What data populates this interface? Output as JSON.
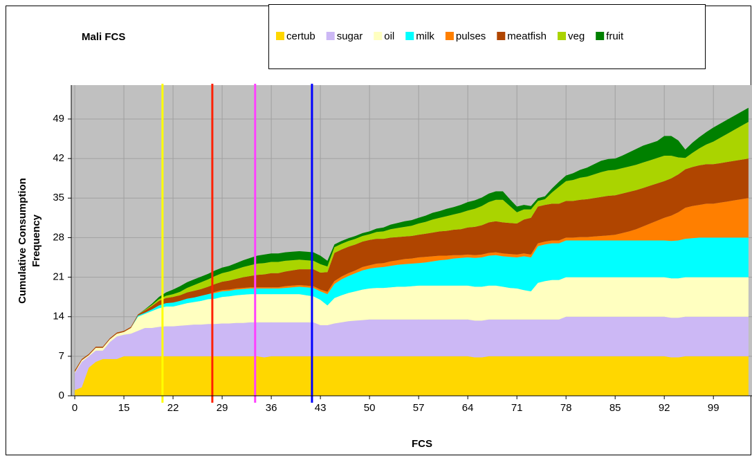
{
  "chart_data": {
    "type": "stacked-area",
    "title": "Mali FCS",
    "x_label": "FCS",
    "y_label": [
      "Cumulative Consumption",
      "Frequency"
    ],
    "categories": [
      "0",
      null,
      null,
      null,
      null,
      null,
      null,
      "15",
      null,
      null,
      null,
      null,
      null,
      null,
      "22",
      null,
      null,
      null,
      null,
      null,
      null,
      "29",
      null,
      null,
      null,
      null,
      null,
      null,
      "36",
      null,
      null,
      null,
      null,
      null,
      null,
      "43",
      null,
      null,
      null,
      null,
      null,
      null,
      "50",
      null,
      null,
      null,
      null,
      null,
      null,
      "57",
      null,
      null,
      null,
      null,
      null,
      null,
      "64",
      null,
      null,
      null,
      null,
      null,
      null,
      "71",
      null,
      null,
      null,
      null,
      null,
      null,
      "78",
      null,
      null,
      null,
      null,
      null,
      null,
      "85",
      null,
      null,
      null,
      null,
      null,
      null,
      "92",
      null,
      null,
      null,
      null,
      null,
      null,
      "99",
      null,
      null,
      null,
      null,
      null
    ],
    "ylim": [
      0,
      55
    ],
    "yticks": [
      0,
      7,
      14,
      21,
      28,
      35,
      42,
      49
    ],
    "grid": true,
    "plot_background": "#c0c0c0",
    "series": [
      {
        "name": "certub",
        "color": "#ffd700",
        "values": [
          1,
          1.5,
          5,
          6,
          6.5,
          6.5,
          6.5,
          7,
          7,
          7,
          7,
          7,
          7,
          7,
          7,
          7,
          7,
          7,
          7,
          7,
          7,
          7,
          7,
          7,
          7,
          7,
          7,
          6.8,
          7,
          7,
          7,
          7,
          7,
          7,
          7,
          7,
          7,
          7,
          7,
          7,
          7,
          7,
          7,
          7,
          7,
          7,
          7,
          7,
          7,
          7,
          7,
          7,
          7,
          7,
          7,
          7,
          7,
          6.8,
          6.8,
          7,
          7,
          7,
          7,
          7,
          7,
          7,
          7,
          7,
          7,
          7,
          7,
          7,
          7,
          7,
          7,
          7,
          7,
          7,
          7,
          7,
          7,
          7,
          7,
          7,
          7,
          6.8,
          6.8,
          7,
          7,
          7,
          7,
          7,
          7,
          7,
          7,
          7,
          7
        ]
      },
      {
        "name": "sugar",
        "color": "#ccb8f5",
        "values": [
          3,
          4.5,
          2,
          2,
          1.5,
          3,
          4,
          3.8,
          4,
          4.5,
          5,
          5,
          5.2,
          5.3,
          5.3,
          5.4,
          5.5,
          5.6,
          5.6,
          5.7,
          5.7,
          5.8,
          5.8,
          5.9,
          5.9,
          6,
          6,
          6.2,
          6,
          6,
          6,
          6,
          6,
          6,
          6,
          5.5,
          5.5,
          5.8,
          6,
          6.2,
          6.3,
          6.4,
          6.5,
          6.5,
          6.5,
          6.5,
          6.5,
          6.5,
          6.5,
          6.5,
          6.5,
          6.5,
          6.5,
          6.5,
          6.5,
          6.5,
          6.5,
          6.5,
          6.5,
          6.5,
          6.5,
          6.5,
          6.5,
          6.5,
          6.5,
          6.5,
          6.5,
          6.5,
          6.5,
          6.5,
          7,
          7,
          7,
          7,
          7,
          7,
          7,
          7,
          7,
          7,
          7,
          7,
          7,
          7,
          7,
          7,
          7,
          7,
          7,
          7,
          7,
          7,
          7,
          7,
          7,
          7,
          7
        ]
      },
      {
        "name": "oil",
        "color": "#ffffc0",
        "values": [
          0.2,
          0.3,
          0.2,
          0.5,
          0.5,
          0.5,
          0.5,
          0.5,
          1,
          2.5,
          2.5,
          3,
          3.3,
          3.5,
          3.5,
          3.7,
          3.9,
          4,
          4.2,
          4.4,
          4.5,
          4.7,
          4.8,
          4.9,
          5,
          5,
          5,
          5,
          5,
          5,
          5,
          5,
          5,
          4.8,
          4.6,
          4.5,
          3.5,
          4.5,
          4.8,
          5,
          5.2,
          5.4,
          5.5,
          5.6,
          5.6,
          5.7,
          5.8,
          5.8,
          5.9,
          6,
          6,
          6,
          6,
          6,
          6,
          6,
          6,
          6,
          6,
          6,
          6,
          5.8,
          5.6,
          5.5,
          5.2,
          5,
          6.5,
          6.8,
          7,
          7,
          7,
          7,
          7,
          7,
          7,
          7,
          7,
          7,
          7,
          7,
          7,
          7,
          7,
          7,
          7,
          7,
          7,
          7,
          7,
          7,
          7,
          7,
          7,
          7,
          7,
          7,
          7
        ]
      },
      {
        "name": "milk",
        "color": "#00ffff",
        "values": [
          0,
          0,
          0,
          0,
          0,
          0,
          0,
          0,
          0,
          0.2,
          0.2,
          0.3,
          0.5,
          0.6,
          0.7,
          0.7,
          0.8,
          0.8,
          0.9,
          0.9,
          1,
          1,
          1,
          1,
          1,
          1,
          1,
          1,
          1,
          1,
          1.1,
          1.2,
          1.3,
          1.4,
          1.5,
          1.5,
          2,
          2.5,
          2.8,
          3,
          3.2,
          3.4,
          3.5,
          3.6,
          3.7,
          3.8,
          3.9,
          4,
          4,
          4,
          4.1,
          4.3,
          4.5,
          4.6,
          4.8,
          4.9,
          5,
          5.1,
          5.2,
          5.3,
          5.4,
          5.4,
          5.5,
          5.5,
          6,
          6,
          6.5,
          6.5,
          6.5,
          6.5,
          6.5,
          6.5,
          6.5,
          6.5,
          6.5,
          6.5,
          6.5,
          6.5,
          6.5,
          6.5,
          6.5,
          6.5,
          6.5,
          6.5,
          6.5,
          6.6,
          6.7,
          6.8,
          6.9,
          7,
          7,
          7,
          7,
          7,
          7,
          7,
          7
        ]
      },
      {
        "name": "pulses",
        "color": "#ff7f00",
        "values": [
          0,
          0,
          0,
          0,
          0,
          0,
          0,
          0,
          0,
          0,
          0,
          0,
          0,
          0,
          0,
          0,
          0,
          0,
          0,
          0,
          0.2,
          0.2,
          0.2,
          0.2,
          0.2,
          0.2,
          0.2,
          0.2,
          0.2,
          0.2,
          0.3,
          0.3,
          0.3,
          0.3,
          0.3,
          0.3,
          0.4,
          0.5,
          0.5,
          0.5,
          0.5,
          0.6,
          0.6,
          0.7,
          0.7,
          0.8,
          0.8,
          0.9,
          0.9,
          1,
          1,
          0.9,
          0.8,
          0.7,
          0.6,
          0.5,
          0.5,
          0.5,
          0.5,
          0.5,
          0.5,
          0.5,
          0.5,
          0.5,
          0.5,
          0.5,
          0.5,
          0.5,
          0.5,
          0.5,
          0.5,
          0.5,
          0.6,
          0.6,
          0.7,
          0.8,
          0.9,
          1,
          1.3,
          1.6,
          2,
          2.5,
          3,
          3.5,
          4,
          4.5,
          5,
          5.5,
          5.7,
          5.8,
          6,
          6,
          6.2,
          6.4,
          6.6,
          6.8,
          7
        ]
      },
      {
        "name": "meatfish",
        "color": "#b04500",
        "values": [
          0.3,
          0.2,
          0.2,
          0.2,
          0.2,
          0.2,
          0.2,
          0.2,
          0.2,
          0.2,
          0.4,
          0.6,
          0.8,
          0.9,
          1,
          1,
          1.1,
          1.2,
          1.2,
          1.3,
          1.4,
          1.5,
          1.6,
          1.7,
          1.9,
          2,
          2.2,
          2.3,
          2.5,
          2.5,
          2.6,
          2.7,
          2.8,
          2.9,
          3,
          3,
          3.5,
          5,
          4.8,
          4.7,
          4.6,
          4.5,
          4.5,
          4.4,
          4.3,
          4.2,
          4.1,
          4,
          4,
          4,
          4.1,
          4.2,
          4.3,
          4.4,
          4.5,
          4.6,
          4.8,
          5,
          5.2,
          5.4,
          5.5,
          5.5,
          5.5,
          5.5,
          6,
          6.5,
          6.5,
          6.5,
          6.5,
          6.5,
          6.5,
          6.5,
          6.6,
          6.7,
          6.8,
          6.9,
          7,
          7,
          7,
          7,
          6.9,
          6.8,
          6.7,
          6.6,
          6.5,
          6.6,
          6.7,
          6.8,
          6.9,
          7,
          7,
          7,
          7,
          7,
          7,
          7,
          7
        ]
      },
      {
        "name": "veg",
        "color": "#aad400",
        "values": [
          0,
          0,
          0,
          0,
          0,
          0,
          0,
          0,
          0,
          0,
          0.1,
          0.2,
          0.3,
          0.4,
          0.5,
          0.6,
          0.8,
          1,
          1.2,
          1.3,
          1.4,
          1.5,
          1.6,
          1.7,
          1.8,
          1.9,
          2,
          2,
          2,
          2,
          1.9,
          1.8,
          1.7,
          1.6,
          1.5,
          1.5,
          1,
          1,
          1,
          1,
          1,
          1,
          1,
          1.2,
          1.3,
          1.5,
          1.6,
          1.7,
          1.8,
          2,
          2.1,
          2.3,
          2.4,
          2.6,
          2.7,
          2.9,
          3,
          3.2,
          3.4,
          3.6,
          3.8,
          4,
          3,
          2,
          1.8,
          1.5,
          1,
          1,
          2,
          3,
          3.5,
          3.7,
          3.9,
          4,
          4.2,
          4.4,
          4.5,
          4.5,
          4.5,
          4.5,
          4.5,
          4.5,
          4.5,
          4.5,
          4.5,
          4,
          3,
          2,
          2.5,
          3,
          3.5,
          4,
          4.5,
          5,
          5.5,
          6,
          6.5
        ]
      },
      {
        "name": "fruit",
        "color": "#008000",
        "values": [
          0,
          0,
          0,
          0,
          0,
          0,
          0,
          0,
          0,
          0,
          0.1,
          0.2,
          0.4,
          0.6,
          0.8,
          1,
          1,
          1,
          1,
          1,
          1,
          1,
          1,
          1.1,
          1.2,
          1.3,
          1.4,
          1.5,
          1.5,
          1.5,
          1.5,
          1.5,
          1.5,
          1.5,
          1.5,
          1.5,
          1,
          0.5,
          0.5,
          0.5,
          0.5,
          0.5,
          0.5,
          0.6,
          0.7,
          0.8,
          0.9,
          1,
          1,
          1,
          1.1,
          1.2,
          1.2,
          1.3,
          1.3,
          1.4,
          1.5,
          1.5,
          1.5,
          1.5,
          1.5,
          1.5,
          1.2,
          1,
          0.8,
          0.6,
          0.5,
          0.5,
          0.7,
          0.9,
          1,
          1.2,
          1.4,
          1.6,
          1.8,
          2,
          2,
          2,
          2.2,
          2.5,
          2.8,
          3,
          3,
          3,
          3.5,
          3.5,
          3,
          1.5,
          1.8,
          2,
          2.2,
          2.5,
          2.5,
          2.5,
          2.5,
          2.5,
          2.5
        ]
      }
    ],
    "vlines": [
      {
        "value": 20.5,
        "color": "#ffff00"
      },
      {
        "value": 27.6,
        "color": "#ff2000"
      },
      {
        "value": 33.7,
        "color": "#ff40ff"
      },
      {
        "value": 41.8,
        "color": "#0000ff"
      }
    ]
  }
}
